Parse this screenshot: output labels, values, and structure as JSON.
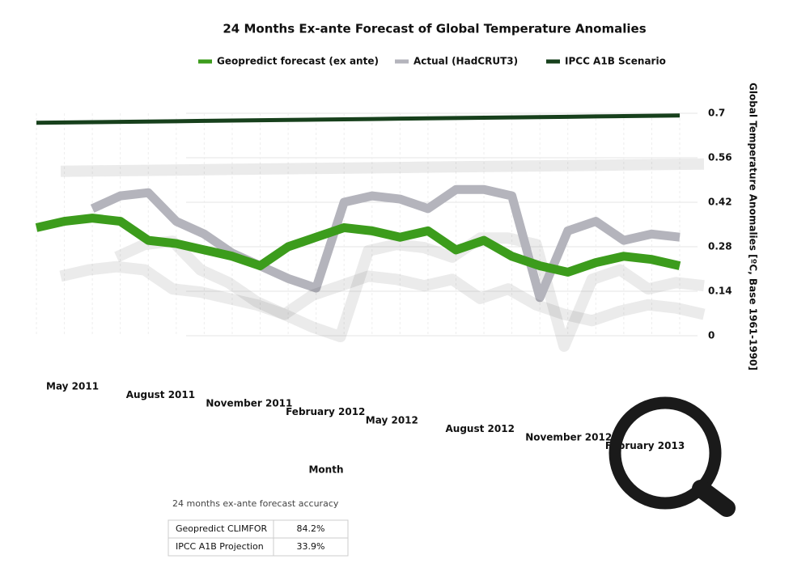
{
  "chart_data": {
    "type": "line",
    "title": "24 Months Ex-ante Forecast of Global Temperature Anomalies",
    "x_label": "Month",
    "y_label": "Global Temperature Anomalies [ºC, Base 1961-1990]",
    "categories": [
      "May 2011",
      null,
      null,
      "August 2011",
      null,
      null,
      "November 2011",
      null,
      null,
      "February 2012",
      null,
      null,
      "May 2012",
      null,
      null,
      "August 2012",
      null,
      null,
      "November 2012",
      null,
      null,
      "February 2013",
      null,
      null
    ],
    "series": [
      {
        "name": "Geopredict forecast (ex ante)",
        "color": "#3c9c1c",
        "values": [
          0.34,
          0.36,
          0.37,
          0.36,
          0.3,
          0.29,
          0.27,
          0.25,
          0.22,
          0.28,
          0.31,
          0.34,
          0.33,
          0.31,
          0.33,
          0.27,
          0.3,
          0.25,
          0.22,
          0.2,
          0.23,
          0.25,
          0.24,
          0.22
        ]
      },
      {
        "name": "Actual (HadCRUT3)",
        "color": "#b4b4bc",
        "values": [
          null,
          null,
          0.4,
          0.44,
          0.45,
          0.36,
          0.32,
          0.26,
          0.22,
          0.18,
          0.15,
          0.42,
          0.44,
          0.43,
          0.4,
          0.46,
          0.46,
          0.44,
          0.12,
          0.33,
          0.36,
          0.3,
          0.32,
          0.31
        ]
      },
      {
        "name": "IPCC A1B Scenario",
        "color": "#17401c",
        "values": [
          0.67,
          0.671,
          0.672,
          0.673,
          0.674,
          0.675,
          0.676,
          0.677,
          0.678,
          0.679,
          0.68,
          0.681,
          0.682,
          0.683,
          0.684,
          0.685,
          0.686,
          0.687,
          0.688,
          0.689,
          0.69,
          0.691,
          0.692,
          0.693
        ]
      }
    ],
    "ylim": [
      0,
      0.7
    ],
    "yticks": [
      0,
      0.14,
      0.28,
      0.42,
      0.56,
      0.7
    ],
    "grid": true
  },
  "accuracy_table": {
    "title": "24 months ex-ante forecast accuracy",
    "rows": [
      [
        "Geopredict CLIMFOR",
        "84.2%"
      ],
      [
        "IPCC A1B Projection",
        "33.9%"
      ]
    ]
  }
}
